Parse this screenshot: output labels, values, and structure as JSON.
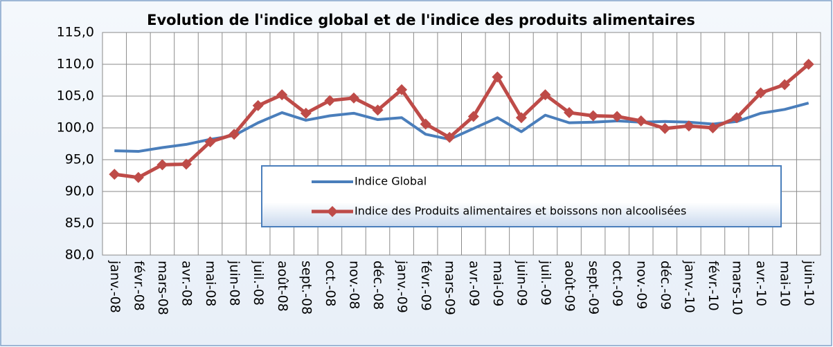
{
  "chart_data": {
    "type": "line",
    "title": "Evolution de l'indice global et de l'indice des produits alimentaires",
    "categories": [
      "janv.-08",
      "févr.-08",
      "mars-08",
      "avr.-08",
      "mai-08",
      "juin-08",
      "juil.-08",
      "août-08",
      "sept.-08",
      "oct.-08",
      "nov.-08",
      "déc.-08",
      "janv.-09",
      "févr.-09",
      "mars-09",
      "avr.-09",
      "mai-09",
      "juin-09",
      "juil.-09",
      "août-09",
      "sept.-09",
      "oct.-09",
      "nov.-09",
      "déc.-09",
      "janv.-10",
      "févr.-10",
      "mars-10",
      "avr.-10",
      "mai-10",
      "juin-10"
    ],
    "series": [
      {
        "name": "Indice Global",
        "color": "#4a7ebb",
        "marker": false,
        "values": [
          96.4,
          96.3,
          96.9,
          97.4,
          98.2,
          98.8,
          100.8,
          102.4,
          101.2,
          101.9,
          102.3,
          101.3,
          101.6,
          99.0,
          98.2,
          99.9,
          101.6,
          99.4,
          102.0,
          100.8,
          100.9,
          101.1,
          100.9,
          101.0,
          100.9,
          100.6,
          101.0,
          102.3,
          102.9,
          103.9
        ]
      },
      {
        "name": "Indice des Produits alimentaires et boissons  non alcoolisées",
        "color": "#be4b48",
        "marker": true,
        "values": [
          92.7,
          92.2,
          94.2,
          94.3,
          97.8,
          99.0,
          103.5,
          105.2,
          102.3,
          104.3,
          104.7,
          102.8,
          106.0,
          100.6,
          98.5,
          101.8,
          108.0,
          101.6,
          105.2,
          102.4,
          101.9,
          101.8,
          101.1,
          99.9,
          100.3,
          100.0,
          101.6,
          105.5,
          106.8,
          110.0
        ]
      }
    ],
    "ylim": [
      80,
      115
    ],
    "yticks": [
      {
        "value": 80,
        "label": "80,0"
      },
      {
        "value": 85,
        "label": "85,0"
      },
      {
        "value": 90,
        "label": "90,0"
      },
      {
        "value": 95,
        "label": "95,0"
      },
      {
        "value": 100,
        "label": "100,0"
      },
      {
        "value": 105,
        "label": "105,0"
      },
      {
        "value": 110,
        "label": "110,0"
      },
      {
        "value": 115,
        "label": "115,0"
      }
    ],
    "grid": true
  }
}
